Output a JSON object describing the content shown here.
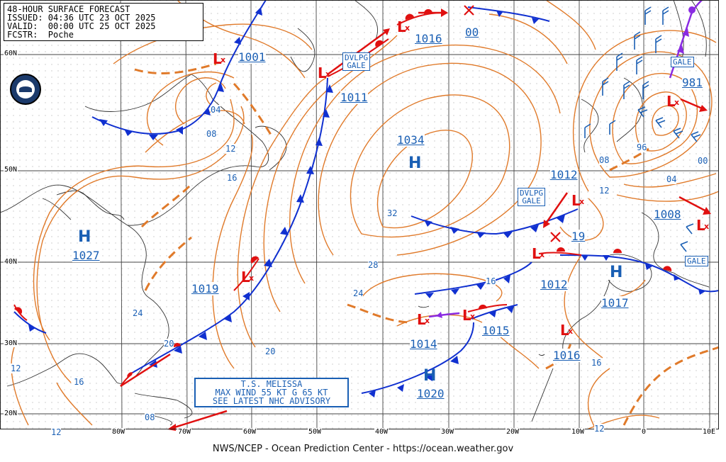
{
  "header": {
    "title": "48-HOUR SURFACE FORECAST",
    "issued": "ISSUED: 04:36 UTC 23 OCT 2025",
    "valid": "VALID:  00:00 UTC 25 OCT 2025",
    "forecaster": "FCSTR:  Poche"
  },
  "footer": "NWS/NCEP - Ocean Prediction Center - https://ocean.weather.gov",
  "lat_labels": [
    "60N",
    "50N",
    "40N",
    "30N",
    "20N"
  ],
  "lon_labels": [
    "80W",
    "70W",
    "60W",
    "50W",
    "40W",
    "30W",
    "20W",
    "10W",
    "0",
    "10E"
  ],
  "tropical_box": [
    "T.S. MELISSA",
    "MAX WIND 55 KT G 65 KT",
    "SEE LATEST NHC ADVISORY"
  ],
  "warning_boxes": {
    "dvlpg_gale_1": [
      "DVLPG",
      "GALE"
    ],
    "dvlpg_gale_2": [
      "DVLPG",
      "GALE"
    ],
    "gale_ne": "GALE",
    "gale_e": "GALE"
  },
  "centers": {
    "h_1034": {
      "letter": "H",
      "pressure": "1034"
    },
    "h_1027": {
      "letter": "H",
      "pressure": "1027"
    },
    "h_1020": {
      "letter": "H",
      "pressure": "1020"
    },
    "h_1017": {
      "letter": "H",
      "pressure": "1017"
    },
    "l_1001": {
      "pressure": "1001"
    },
    "l_1011": {
      "pressure": "1011"
    },
    "l_1016_n": {
      "pressure": "1016"
    },
    "l_1000": {
      "pressure": "00"
    },
    "l_981": {
      "pressure": "981"
    },
    "l_1008": {
      "pressure": "1008"
    },
    "l_1012_a": {
      "pressure": "1012"
    },
    "l_1012_b": {
      "pressure": "1012"
    },
    "l_1019": {
      "pressure": "19"
    },
    "l_1015": {
      "pressure": "1015"
    },
    "l_1014": {
      "pressure": "1014"
    },
    "l_1016_s": {
      "pressure": "1016"
    },
    "l_1019_w": {
      "pressure": "1019"
    }
  },
  "isobar_labels": [
    "04",
    "08",
    "12",
    "16",
    "20",
    "24",
    "28",
    "32",
    "16",
    "12",
    "20",
    "24",
    "16",
    "12",
    "08",
    "12",
    "16",
    "96",
    "08",
    "04",
    "00",
    "12",
    "12"
  ],
  "colors": {
    "isobar": "#e07a2a",
    "front_cold": "#1030d0",
    "front_warm": "#e01010",
    "center_text": "#1a5fb4",
    "low_symbol": "#e01010",
    "occluded": "#8a2be2",
    "grid_dots": "#bdbdbd"
  }
}
